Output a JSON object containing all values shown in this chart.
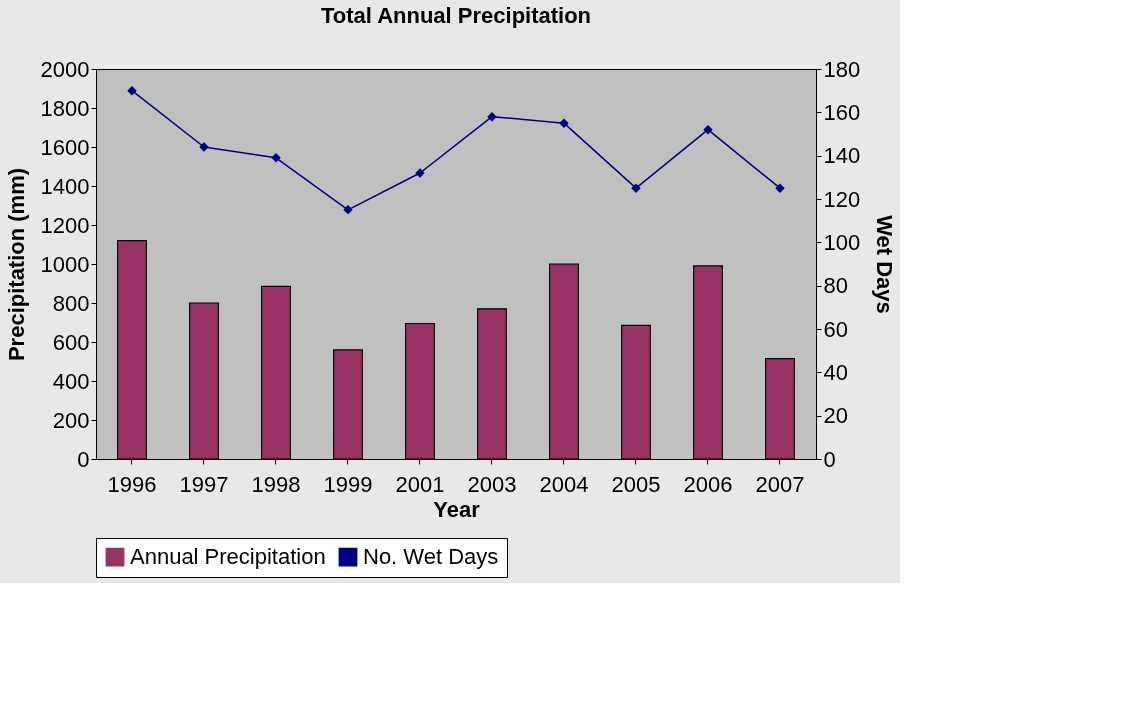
{
  "chart_data": {
    "type": "bar",
    "title": "Total Annual Precipitation",
    "xlabel": "Year",
    "ylabel": "Precipitation (mm)",
    "y2label": "Wet Days",
    "categories": [
      "1996",
      "1997",
      "1998",
      "1999",
      "2001",
      "2003",
      "2004",
      "2005",
      "2006",
      "2007"
    ],
    "series": [
      {
        "name": "Annual Precipitation",
        "color": "#993366",
        "values": [
          1120,
          800,
          885,
          560,
          695,
          770,
          1000,
          685,
          990,
          515
        ]
      },
      {
        "name": "No. Wet Days",
        "type": "line",
        "axis": "y2",
        "color": "#000080",
        "marker": "diamond",
        "values": [
          170,
          144,
          139,
          115,
          132,
          158,
          155,
          125,
          152,
          125
        ]
      }
    ],
    "ylim": [
      0,
      2000
    ],
    "yticks": [
      0,
      200,
      400,
      600,
      800,
      1000,
      1200,
      1400,
      1600,
      1800,
      2000
    ],
    "y2lim": [
      0,
      180
    ],
    "y2ticks": [
      0,
      20,
      40,
      60,
      80,
      100,
      120,
      140,
      160,
      180
    ],
    "grid": false,
    "legend": "bottom"
  }
}
